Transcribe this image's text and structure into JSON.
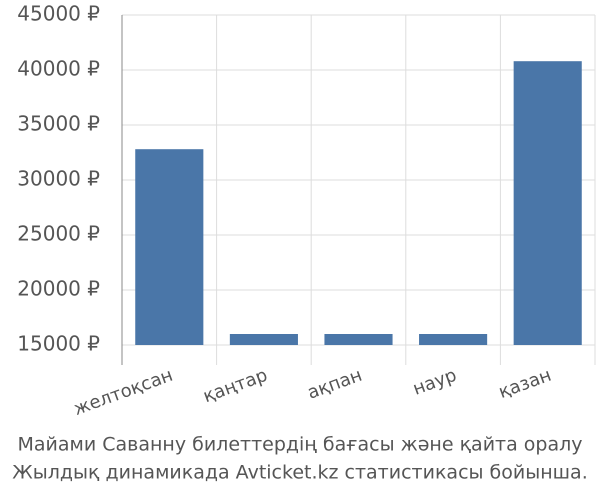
{
  "chart_data": {
    "type": "bar",
    "categories": [
      "желтоқсан",
      "қаңтар",
      "ақпан",
      "наур",
      "қазан"
    ],
    "values": [
      32800,
      16000,
      16000,
      16000,
      40800
    ],
    "color": "#4a76a8",
    "ylim": [
      15000,
      45000
    ],
    "yticks": [
      {
        "value": 15000,
        "label": "15000 ₽"
      },
      {
        "value": 20000,
        "label": "20000 ₽"
      },
      {
        "value": 25000,
        "label": "25000 ₽"
      },
      {
        "value": 30000,
        "label": "30000 ₽"
      },
      {
        "value": 35000,
        "label": "35000 ₽"
      },
      {
        "value": 40000,
        "label": "40000 ₽"
      },
      {
        "value": 45000,
        "label": "45000 ₽"
      }
    ],
    "grid": true,
    "caption": [
      "Майами Саванну билеттердің бағасы және қайта оралу",
      "Жылдық динамикада Avticket.kz статистикасы бойынша."
    ]
  }
}
